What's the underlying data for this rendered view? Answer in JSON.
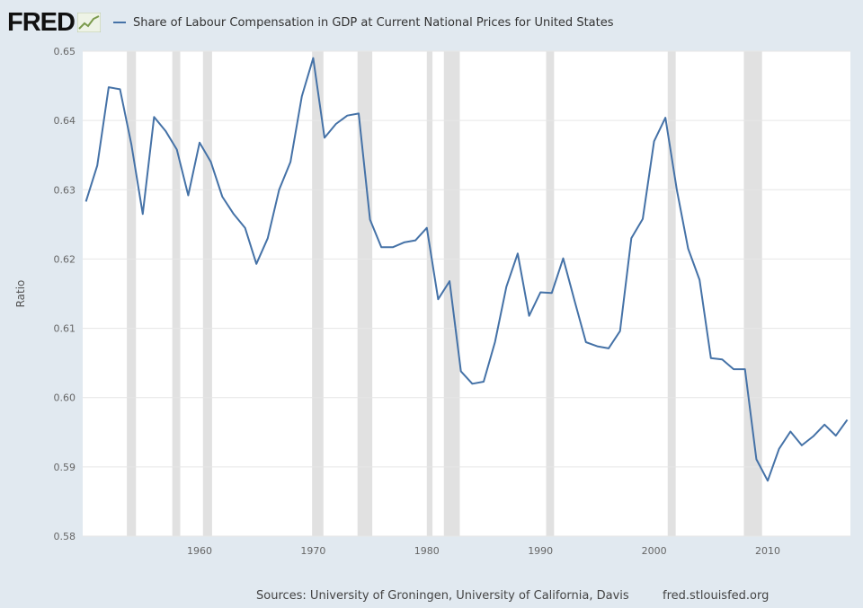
{
  "header": {
    "logo": "FRED"
  },
  "chart_data": {
    "type": "line",
    "title": "Share of Labour Compensation in GDP at Current National Prices for United States",
    "ylabel": "Ratio",
    "xlabel": "",
    "ylim": [
      0.58,
      0.65
    ],
    "xlim": [
      1950,
      2017
    ],
    "grid": true,
    "legend": "top-left",
    "line_color": "#4572a7",
    "recession_color": "#e1e1e1",
    "yticks": [
      "0.58",
      "0.59",
      "0.60",
      "0.61",
      "0.62",
      "0.63",
      "0.64",
      "0.65"
    ],
    "xticks": [
      "1960",
      "1970",
      "1980",
      "1990",
      "2000",
      "2010"
    ],
    "recessions": [
      [
        1953.6,
        1954.4
      ],
      [
        1957.6,
        1958.3
      ],
      [
        1960.3,
        1961.1
      ],
      [
        1969.9,
        1970.9
      ],
      [
        1973.9,
        1975.2
      ],
      [
        1980.0,
        1980.5
      ],
      [
        1981.5,
        1982.9
      ],
      [
        1990.5,
        1991.2
      ],
      [
        2001.2,
        2001.9
      ],
      [
        2007.9,
        2009.5
      ]
    ],
    "x": [
      1950,
      1951,
      1952,
      1953,
      1954,
      1955,
      1956,
      1957,
      1958,
      1959,
      1960,
      1961,
      1962,
      1963,
      1964,
      1965,
      1966,
      1967,
      1968,
      1969,
      1970,
      1971,
      1972,
      1973,
      1974,
      1975,
      1976,
      1977,
      1978,
      1979,
      1980,
      1981,
      1982,
      1983,
      1984,
      1985,
      1986,
      1987,
      1988,
      1989,
      1990,
      1991,
      1992,
      1993,
      1994,
      1995,
      1996,
      1997,
      1998,
      1999,
      2000,
      2001,
      2002,
      2003,
      2004,
      2005,
      2006,
      2007,
      2008,
      2009,
      2010,
      2011,
      2012,
      2013,
      2014,
      2015,
      2016,
      2017
    ],
    "values": [
      0.6283,
      0.6335,
      0.6448,
      0.6445,
      0.6365,
      0.6265,
      0.6405,
      0.6385,
      0.6358,
      0.6292,
      0.6368,
      0.634,
      0.629,
      0.6265,
      0.6245,
      0.6193,
      0.623,
      0.63,
      0.634,
      0.6435,
      0.649,
      0.6375,
      0.6395,
      0.6407,
      0.641,
      0.6257,
      0.6217,
      0.6217,
      0.6224,
      0.6227,
      0.6245,
      0.6142,
      0.6168,
      0.6038,
      0.602,
      0.6023,
      0.608,
      0.616,
      0.6208,
      0.6118,
      0.6152,
      0.6151,
      0.6201,
      0.614,
      0.608,
      0.6074,
      0.6071,
      0.6096,
      0.623,
      0.6258,
      0.637,
      0.6404,
      0.63,
      0.6215,
      0.617,
      0.6057,
      0.6055,
      0.6041,
      0.6041,
      0.5911,
      0.588,
      0.5926,
      0.5951,
      0.5931,
      0.5944,
      0.5961,
      0.5945,
      0.5968
    ]
  },
  "footer": {
    "sources": "Sources: University of Groningen, University of California, Davis",
    "site": "fred.stlouisfed.org"
  }
}
